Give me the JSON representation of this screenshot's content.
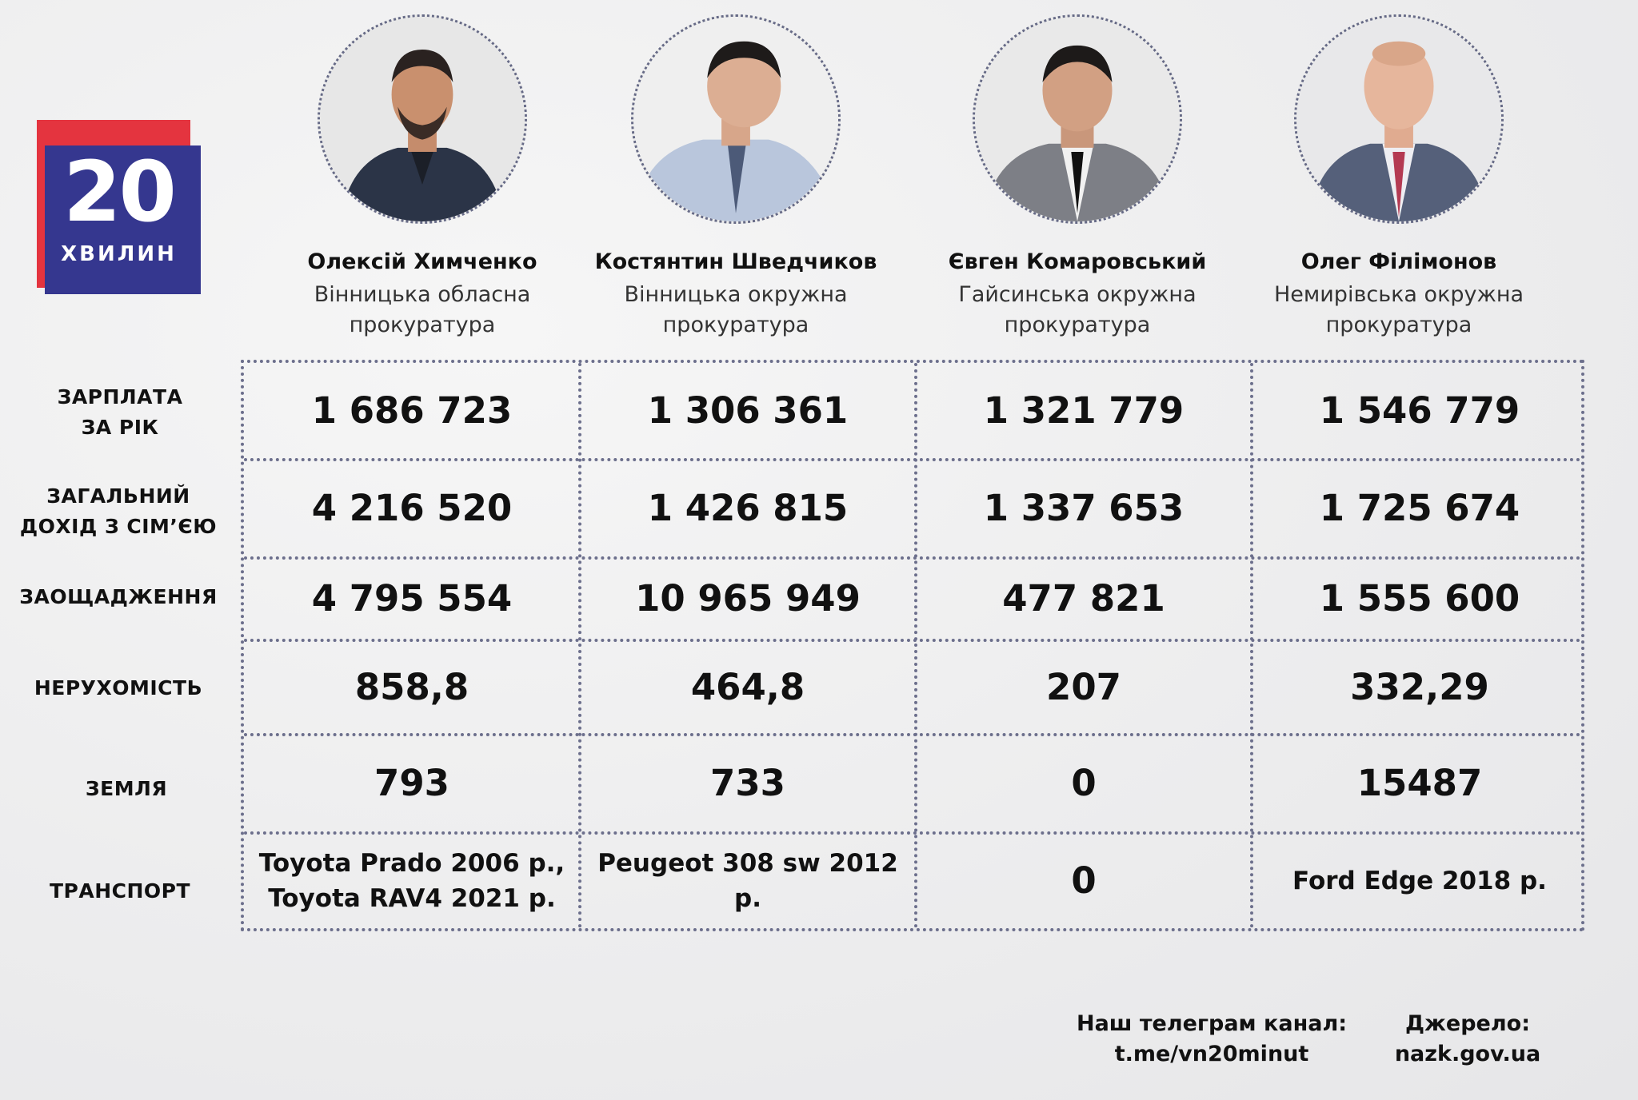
{
  "brand": {
    "number": "20",
    "word": "ХВИЛИН"
  },
  "people": [
    {
      "name": "Олексій Химченко",
      "org_line1": "Вінницька обласна",
      "org_line2": "прокуратура"
    },
    {
      "name": "Костянтин Шведчиков",
      "org_line1": "Вінницька окружна",
      "org_line2": "прокуратура"
    },
    {
      "name": "Євген Комаровський",
      "org_line1": "Гайсинська окружна",
      "org_line2": "прокуратура"
    },
    {
      "name": "Олег Філімонов",
      "org_line1": "Немирівська окружна",
      "org_line2": "прокуратура"
    }
  ],
  "rows": [
    {
      "label_line1": "ЗАРПЛАТА",
      "label_line2": "ЗА РІК",
      "values": [
        "1 686 723",
        "1 306 361",
        "1 321 779",
        "1 546 779"
      ]
    },
    {
      "label_line1": "ЗАГАЛЬНИЙ",
      "label_line2": "ДОХІД З СІМ’ЄЮ",
      "values": [
        "4 216 520",
        "1 426 815",
        "1 337 653",
        "1 725 674"
      ]
    },
    {
      "label_line1": "ЗАОЩАДЖЕННЯ",
      "label_line2": "",
      "values": [
        "4 795 554",
        "10 965 949",
        "477 821",
        "1 555 600"
      ]
    },
    {
      "label_line1": "НЕРУХОМІСТЬ",
      "label_line2": "",
      "values": [
        "858,8",
        "464,8",
        "207",
        "332,29"
      ]
    },
    {
      "label_line1": "ЗЕМЛЯ",
      "label_line2": "",
      "values": [
        "793",
        "733",
        "0",
        "15487"
      ]
    },
    {
      "label_line1": "ТРАНСПОРТ",
      "label_line2": "",
      "values": [
        {
          "line1": "Toyota Prado 2006 р.,",
          "line2": "Toyota RAV4 2021 р."
        },
        {
          "line1": "Peugeot 308 sw 2012 р.",
          "line2": ""
        },
        {
          "line1": "0",
          "line2": ""
        },
        {
          "line1": "Ford Edge 2018 р.",
          "line2": ""
        }
      ]
    }
  ],
  "footer": {
    "telegram_title": "Наш телеграм канал:",
    "telegram_link": "t.me/vn20minut",
    "source_title": "Джерело:",
    "source_link": "nazk.gov.ua"
  }
}
